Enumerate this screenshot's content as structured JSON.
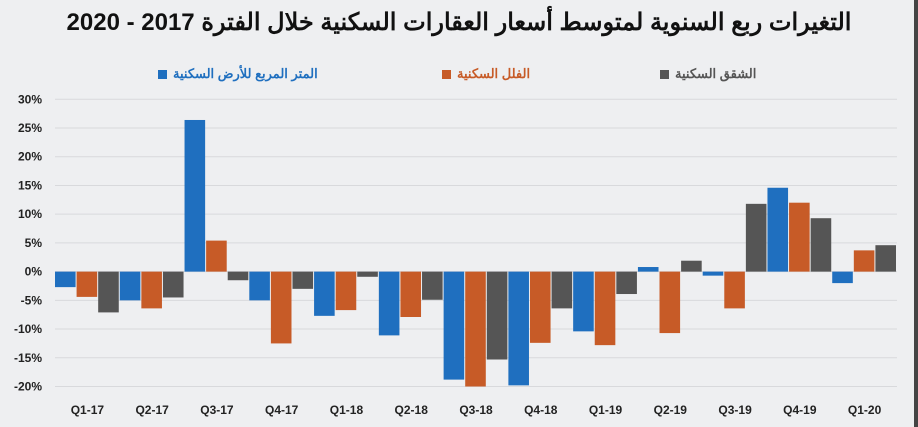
{
  "chart_data": {
    "type": "bar",
    "title": "التغيرات ربع السنوية لمتوسط أسعار العقارات السكنية خلال الفترة 2017 - 2020",
    "categories": [
      "Q1-17",
      "Q2-17",
      "Q3-17",
      "Q4-17",
      "Q1-18",
      "Q2-18",
      "Q3-18",
      "Q4-18",
      "Q1-19",
      "Q2-19",
      "Q3-19",
      "Q4-19",
      "Q1-20"
    ],
    "series": [
      {
        "name": "المتر المربع للأرض السكنية",
        "color": "#1f6fbf",
        "values": [
          -2.7,
          -5.0,
          26.4,
          -5.0,
          -7.7,
          -11.1,
          -18.8,
          -19.8,
          -10.4,
          0.8,
          -0.7,
          14.6,
          -2.0
        ]
      },
      {
        "name": "الفلل السكنية",
        "color": "#c75b27",
        "values": [
          -4.4,
          -6.4,
          5.4,
          -12.5,
          -6.7,
          -7.9,
          -20.0,
          -12.4,
          -12.8,
          -10.7,
          -6.4,
          12.0,
          3.7
        ]
      },
      {
        "name": "الشقق السكنية",
        "color": "#555555",
        "values": [
          -7.1,
          -4.5,
          -1.5,
          -3.0,
          -0.9,
          -4.9,
          -15.3,
          -6.4,
          -3.9,
          1.9,
          11.8,
          9.3,
          4.6
        ]
      }
    ],
    "yticks": [
      "30%",
      "25%",
      "20%",
      "15%",
      "10%",
      "5%",
      "0%",
      "-5%",
      "-10%",
      "-15%",
      "-20%"
    ],
    "ylim": [
      -20,
      30
    ],
    "xlabel": "",
    "ylabel": "",
    "grid": true,
    "legend_placement": "top"
  }
}
